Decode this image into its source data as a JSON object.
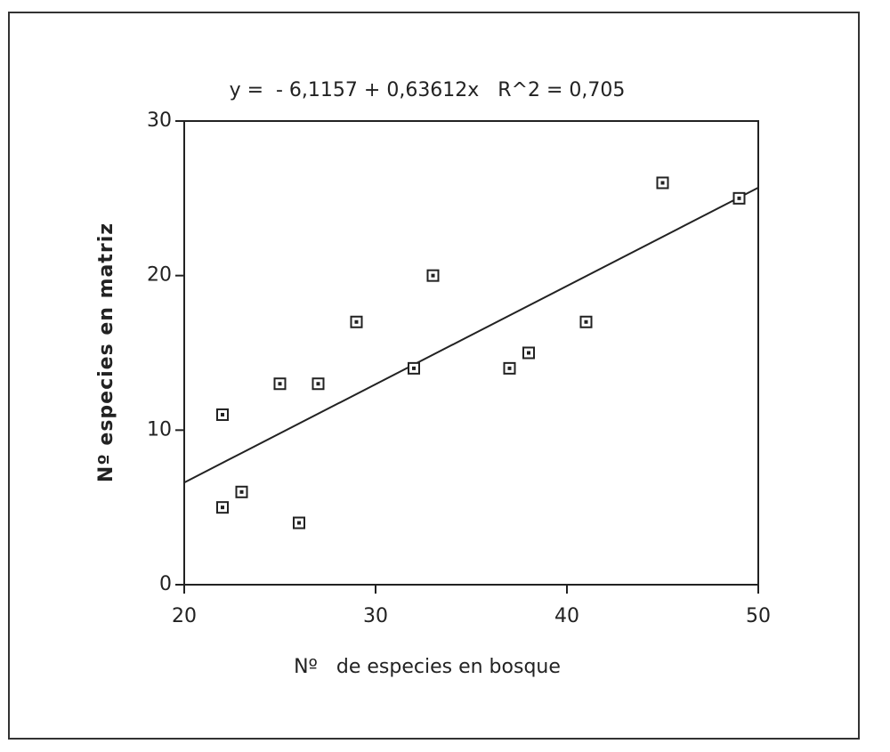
{
  "chart_data": {
    "type": "scatter",
    "annotation": "y =  - 6,1157 + 0,63612x   R^2 = 0,705",
    "x_label": "Nº   de especies en bosque",
    "y_label": "Nº especies en matriz",
    "xlim": [
      20,
      50
    ],
    "ylim": [
      0,
      30
    ],
    "xticks": [
      20,
      30,
      40,
      50
    ],
    "yticks": [
      0,
      10,
      20,
      30
    ],
    "color": "#222222",
    "series": [
      {
        "x": [
          22,
          22,
          23,
          25,
          26,
          27,
          29,
          32,
          33,
          37,
          38,
          41,
          45,
          49
        ],
        "values": [
          11,
          5,
          6,
          13,
          4,
          13,
          17,
          14,
          20,
          14,
          15,
          17,
          26,
          25
        ]
      }
    ],
    "trendline": {
      "x": [
        20,
        50
      ],
      "values": [
        6.61,
        25.69
      ]
    }
  }
}
